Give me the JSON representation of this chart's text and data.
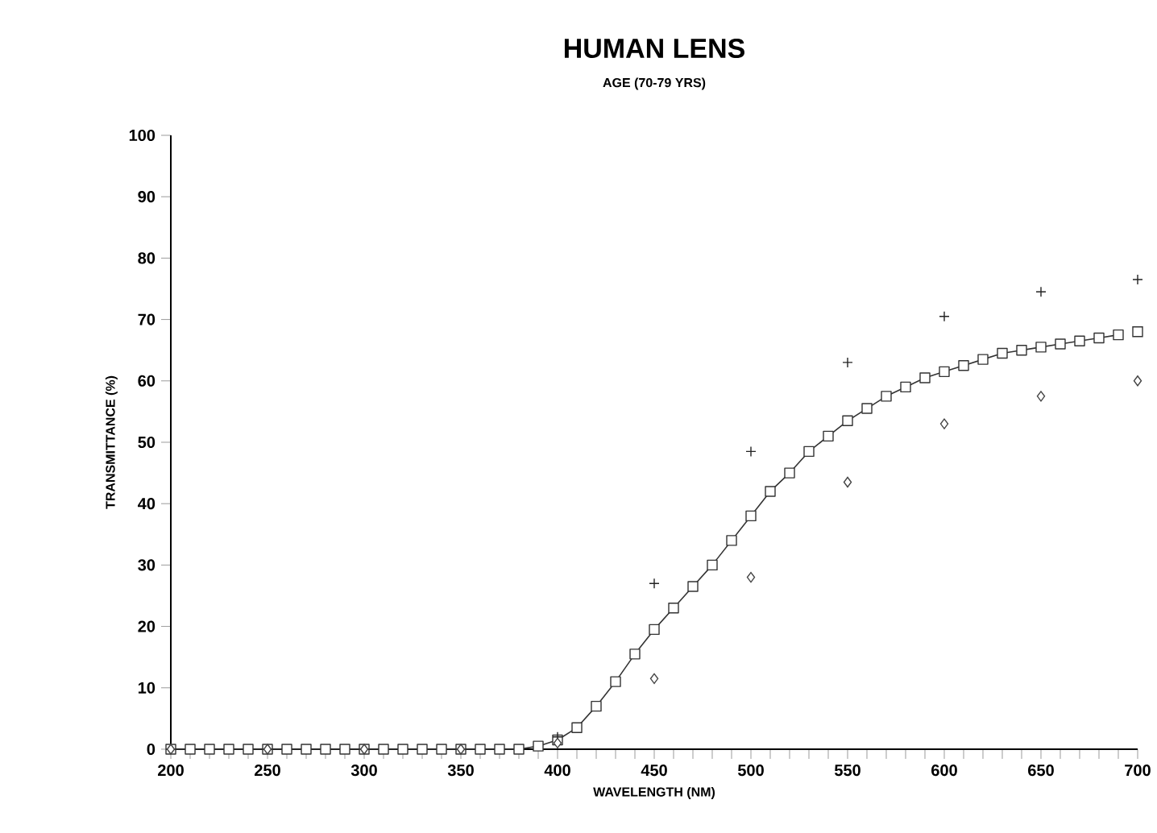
{
  "chart_data": {
    "type": "line",
    "title": "HUMAN LENS",
    "subtitle": "AGE (70-79 YRS)",
    "xlabel": "WAVELENGTH (NM)",
    "ylabel": "TRANSMITTANCE (%)",
    "xlim": [
      200,
      700
    ],
    "ylim": [
      0,
      100
    ],
    "xticks": [
      200,
      250,
      300,
      350,
      400,
      450,
      500,
      550,
      600,
      650,
      700
    ],
    "yticks": [
      0,
      10,
      20,
      30,
      40,
      50,
      60,
      70,
      80,
      90,
      100
    ],
    "grid": false,
    "series": [
      {
        "marker": "square",
        "color": "#333333",
        "x": [
          200,
          210,
          220,
          230,
          240,
          250,
          260,
          270,
          280,
          290,
          300,
          310,
          320,
          330,
          340,
          350,
          360,
          370,
          380,
          390,
          400,
          410,
          420,
          430,
          440,
          450,
          460,
          470,
          480,
          490,
          500,
          510,
          520,
          530,
          540,
          550,
          560,
          570,
          580,
          590,
          600,
          610,
          620,
          630,
          640,
          650,
          660,
          670,
          680,
          690
        ],
        "values": [
          0,
          0,
          0,
          0,
          0,
          0,
          0,
          0,
          0,
          0,
          0,
          0,
          0,
          0,
          0,
          0,
          0,
          0,
          0,
          0.5,
          1.5,
          3.5,
          7,
          11,
          15.5,
          19.5,
          23,
          26.5,
          30,
          34,
          38,
          42,
          45,
          48.5,
          51,
          53.5,
          55.5,
          57.5,
          59,
          60.5,
          61.5,
          62.5,
          63.5,
          64.5,
          65,
          65.5,
          66,
          66.5,
          67,
          67.5
        ]
      },
      {
        "type": "scatter",
        "marker": "cross",
        "color": "#222222",
        "x": [
          200,
          250,
          300,
          350,
          400,
          450,
          500,
          550,
          600,
          650,
          700
        ],
        "values": [
          0,
          0,
          0,
          0,
          2,
          27,
          48.5,
          63,
          70.5,
          74.5,
          76.5
        ]
      },
      {
        "type": "scatter",
        "marker": "diamond",
        "color": "#444444",
        "x": [
          200,
          250,
          300,
          350,
          400,
          450,
          500,
          550,
          600,
          650,
          700
        ],
        "values": [
          0,
          0,
          0,
          0,
          1,
          11.5,
          28,
          43.5,
          53,
          57.5,
          60
        ]
      },
      {
        "type": "scatter",
        "marker": "square",
        "color": "#333333",
        "x": [
          700
        ],
        "values": [
          68
        ]
      }
    ]
  }
}
